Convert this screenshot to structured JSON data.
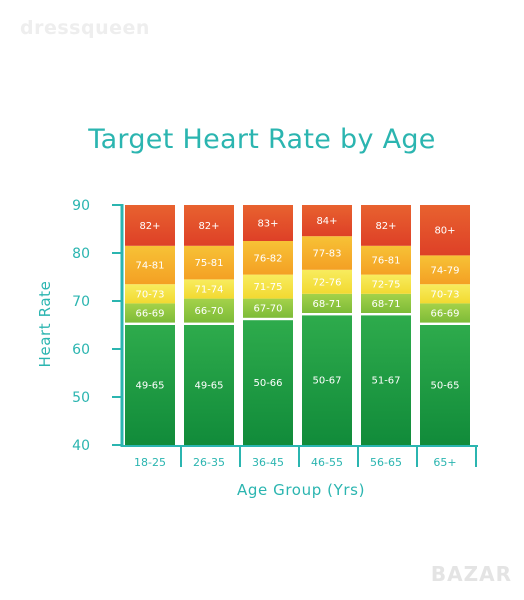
{
  "watermark": "dressqueen",
  "corner_watermark": "BAZAR",
  "chart_data": {
    "type": "bar",
    "stacked": true,
    "title": "Target Heart Rate by Age",
    "xlabel": "Age Group (Yrs)",
    "ylabel": "Heart Rate",
    "ylim": [
      40,
      90
    ],
    "yticks": [
      40,
      50,
      60,
      70,
      80,
      90
    ],
    "categories": [
      "18-25",
      "26-35",
      "36-45",
      "46-55",
      "56-65",
      "65+"
    ],
    "zone_colors": [
      "#1f9a46",
      "#8cc63f",
      "#f4e33a",
      "#f5a623",
      "#e2462a"
    ],
    "bars": [
      {
        "segments": [
          {
            "label": "49-65",
            "from": 40,
            "to": 65
          },
          {
            "label": "66-69",
            "from": 65.5,
            "to": 69.5
          },
          {
            "label": "70-73",
            "from": 69.5,
            "to": 73.5
          },
          {
            "label": "74-81",
            "from": 73.5,
            "to": 81.5
          },
          {
            "label": "82+",
            "from": 81.5,
            "to": 90
          }
        ]
      },
      {
        "segments": [
          {
            "label": "49-65",
            "from": 40,
            "to": 65
          },
          {
            "label": "66-70",
            "from": 65.5,
            "to": 70.5
          },
          {
            "label": "71-74",
            "from": 70.5,
            "to": 74.5
          },
          {
            "label": "75-81",
            "from": 74.5,
            "to": 81.5
          },
          {
            "label": "82+",
            "from": 81.5,
            "to": 90
          }
        ]
      },
      {
        "segments": [
          {
            "label": "50-66",
            "from": 40,
            "to": 66
          },
          {
            "label": "67-70",
            "from": 66.5,
            "to": 70.5
          },
          {
            "label": "71-75",
            "from": 70.5,
            "to": 75.5
          },
          {
            "label": "76-82",
            "from": 75.5,
            "to": 82.5
          },
          {
            "label": "83+",
            "from": 82.5,
            "to": 90
          }
        ]
      },
      {
        "segments": [
          {
            "label": "50-67",
            "from": 40,
            "to": 67
          },
          {
            "label": "68-71",
            "from": 67.5,
            "to": 71.5
          },
          {
            "label": "72-76",
            "from": 71.5,
            "to": 76.5
          },
          {
            "label": "77-83",
            "from": 76.5,
            "to": 83.5
          },
          {
            "label": "84+",
            "from": 83.5,
            "to": 90
          }
        ]
      },
      {
        "segments": [
          {
            "label": "51-67",
            "from": 40,
            "to": 67
          },
          {
            "label": "68-71",
            "from": 67.5,
            "to": 71.5
          },
          {
            "label": "72-75",
            "from": 71.5,
            "to": 75.5
          },
          {
            "label": "76-81",
            "from": 75.5,
            "to": 81.5
          },
          {
            "label": "82+",
            "from": 81.5,
            "to": 90
          }
        ]
      },
      {
        "segments": [
          {
            "label": "50-65",
            "from": 40,
            "to": 65
          },
          {
            "label": "66-69",
            "from": 65.5,
            "to": 69.5
          },
          {
            "label": "70-73",
            "from": 69.5,
            "to": 73.5
          },
          {
            "label": "74-79",
            "from": 73.5,
            "to": 79.5
          },
          {
            "label": "80+",
            "from": 79.5,
            "to": 90
          }
        ]
      }
    ]
  }
}
